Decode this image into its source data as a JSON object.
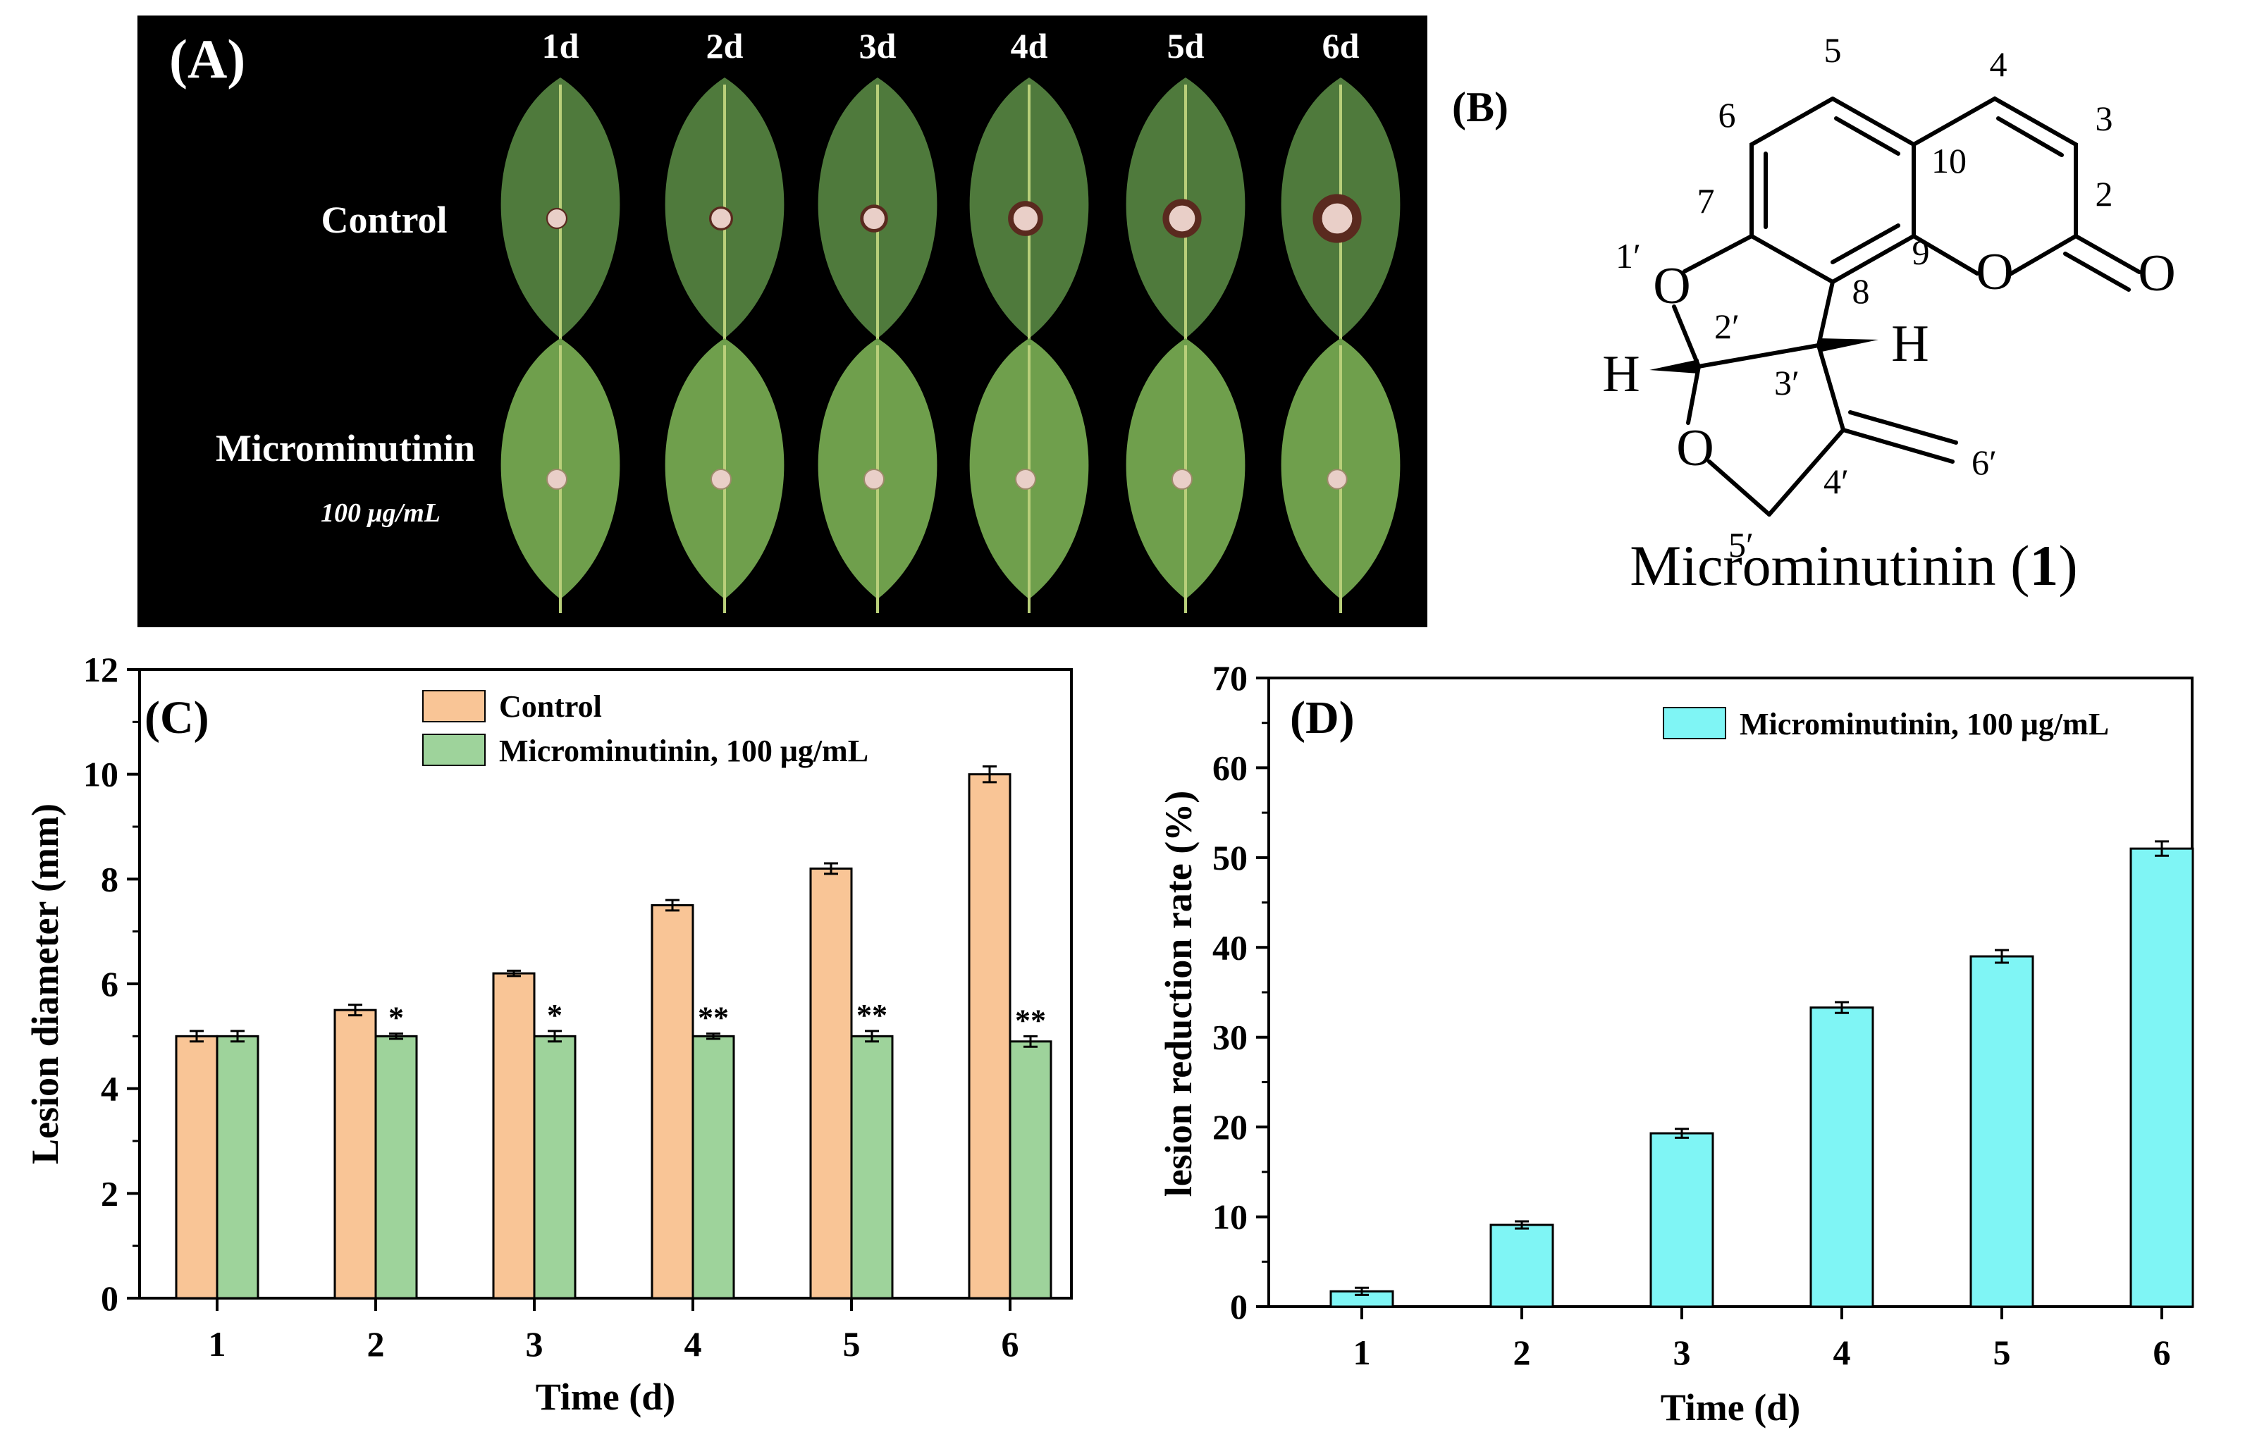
{
  "panelA": {
    "label": "(A)",
    "days": [
      "1d",
      "2d",
      "3d",
      "4d",
      "5d",
      "6d"
    ],
    "row_control": "Control",
    "row_treat": "Microminutinin",
    "row_treat_conc": "100 μg/mL",
    "lesion_diameter_mm": {
      "control": [
        5.0,
        5.5,
        6.2,
        7.5,
        8.2,
        10.0
      ],
      "treat": [
        5.0,
        5.0,
        5.0,
        5.0,
        5.0,
        4.9
      ]
    },
    "colors": {
      "background": "#000000",
      "leaf_control": "#4f7a3c",
      "leaf_treat": "#6f9f4c",
      "lesion": "#e9cfc8"
    }
  },
  "panelB": {
    "label": "(B)",
    "atoms": {
      "n5": "5",
      "n4": "4",
      "n6": "6",
      "n3": "3",
      "n10": "10",
      "n2": "2",
      "n7": "7",
      "n9": "9",
      "n1p": "1′",
      "n8": "8",
      "n2p": "2′",
      "n3p": "3′",
      "n4p": "4′",
      "n5p": "5′",
      "n6p": "6′",
      "O1": "O",
      "O2": "O",
      "O3": "O",
      "O4": "O",
      "H1": "H",
      "H2": "H"
    },
    "compound_name": "Microminutinin",
    "compound_number": "1"
  },
  "chart_data": [
    {
      "type": "bar",
      "panel_label": "(C)",
      "categories": [
        "1",
        "2",
        "3",
        "4",
        "5",
        "6"
      ],
      "series": [
        {
          "name": "Control",
          "color": "#f9c596",
          "values": [
            5.0,
            5.5,
            6.2,
            7.5,
            8.2,
            10.0
          ],
          "errors": [
            0.1,
            0.1,
            0.05,
            0.1,
            0.1,
            0.15
          ]
        },
        {
          "name": "Microminutinin, 100 μg/mL",
          "color": "#9ed39b",
          "values": [
            5.0,
            5.0,
            5.0,
            5.0,
            5.0,
            4.9
          ],
          "errors": [
            0.1,
            0.05,
            0.1,
            0.05,
            0.1,
            0.1
          ],
          "significance": [
            "",
            "*",
            "*",
            "**",
            "**",
            "**"
          ]
        }
      ],
      "xlabel": "Time (d)",
      "ylabel": "Lesion diameter (mm)",
      "ylim": [
        0,
        12
      ],
      "yticks": [
        0,
        2,
        4,
        6,
        8,
        10,
        12
      ],
      "yticklabels": [
        "0",
        "2",
        "4",
        "6",
        "8",
        "10",
        "12"
      ],
      "legend_position": "top-center"
    },
    {
      "type": "bar",
      "panel_label": "(D)",
      "categories": [
        "1",
        "2",
        "3",
        "4",
        "5",
        "6"
      ],
      "series": [
        {
          "name": "Microminutinin, 100 μg/mL",
          "color": "#7ff5f5",
          "values": [
            1.7,
            9.1,
            19.3,
            33.3,
            39.0,
            51.0
          ],
          "errors": [
            0.4,
            0.4,
            0.5,
            0.6,
            0.7,
            0.8
          ]
        }
      ],
      "xlabel": "Time (d)",
      "ylabel": "lesion reduction rate (%)",
      "ylim": [
        0,
        70
      ],
      "yticks": [
        0,
        10,
        20,
        30,
        40,
        50,
        60,
        70
      ],
      "yticklabels": [
        "0",
        "10",
        "20",
        "30",
        "40",
        "50",
        "60",
        "70"
      ],
      "legend_position": "top-right"
    }
  ]
}
